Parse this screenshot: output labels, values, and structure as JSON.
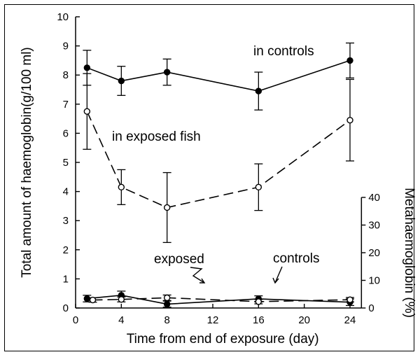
{
  "chart_data": {
    "type": "line",
    "x_label": "Time from end of exposure (day)",
    "x_ticks": [
      0,
      4,
      8,
      12,
      16,
      20,
      24
    ],
    "xlim": [
      0,
      25
    ],
    "left_axis": {
      "label": "Total amount of haemoglobin(g/100 ml)",
      "ticks": [
        0,
        1,
        2,
        3,
        4,
        5,
        6,
        7,
        8,
        9,
        10
      ],
      "ylim": [
        0,
        10
      ]
    },
    "right_axis": {
      "label": "Metahaemoglobin (%)",
      "ticks": [
        0,
        10,
        20,
        30,
        40
      ],
      "ylim": [
        0,
        40
      ]
    },
    "annotations": {
      "in_controls": "in controls",
      "in_exposed": "in exposed fish",
      "exposed": "exposed",
      "controls": "controls"
    },
    "series": [
      {
        "name": "Haemoglobin in controls",
        "axis": "left",
        "marker": "filled",
        "dash": "solid",
        "x": [
          1,
          4,
          8,
          16,
          24
        ],
        "y": [
          8.25,
          7.8,
          8.1,
          7.45,
          8.5
        ],
        "err": [
          0.6,
          0.5,
          0.45,
          0.65,
          0.6
        ]
      },
      {
        "name": "Haemoglobin in exposed fish",
        "axis": "left",
        "marker": "open",
        "dash": "dashed",
        "x": [
          1,
          4,
          8,
          16,
          24
        ],
        "y": [
          6.75,
          4.15,
          3.45,
          4.15,
          6.45
        ],
        "err": [
          1.3,
          0.6,
          1.2,
          0.8,
          1.4
        ]
      },
      {
        "name": "Metahaemoglobin controls",
        "axis": "right",
        "marker": "filled",
        "dash": "solid",
        "x": [
          1,
          4,
          8,
          16,
          24
        ],
        "y": [
          3.4,
          4.6,
          1.4,
          3.3,
          2.1
        ],
        "err": [
          1.2,
          1.5,
          1.1,
          1.1,
          1.2
        ]
      },
      {
        "name": "Metahaemoglobin exposed",
        "axis": "right",
        "marker": "open",
        "dash": "dashed",
        "x": [
          1.5,
          4,
          8,
          16,
          24
        ],
        "y": [
          2.9,
          3.1,
          3.7,
          2.3,
          3.0
        ],
        "err": [
          0.8,
          0.9,
          1.0,
          0.8,
          0.8
        ]
      }
    ]
  }
}
